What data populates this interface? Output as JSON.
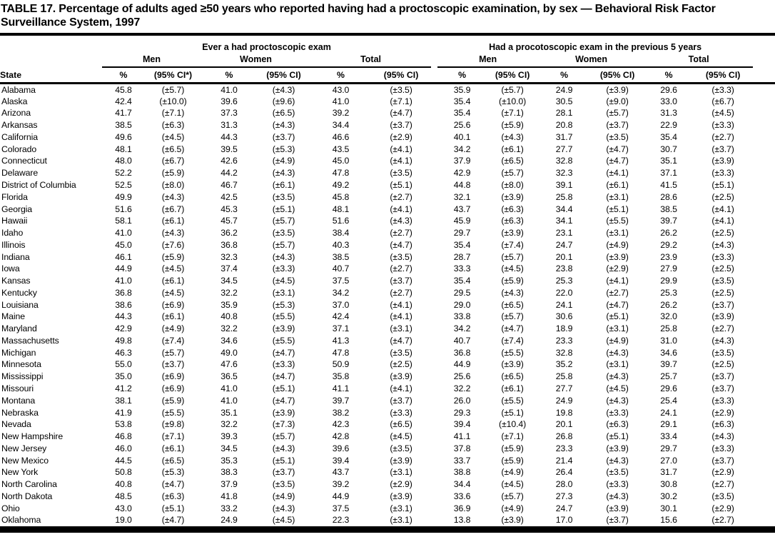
{
  "title": "TABLE 17. Percentage of adults aged ≥50 years who reported having had a proctoscopic examination, by sex — Behavioral Risk Factor Surveillance System, 1997",
  "table": {
    "state_header": "State",
    "group_headers": [
      "Ever a had proctoscopic exam",
      "Had a procotoscopic exam in the previous 5 years"
    ],
    "sex_headers": [
      "Men",
      "Women",
      "Total",
      "Men",
      "Women",
      "Total"
    ],
    "measure_headers": [
      "%",
      "(95% CI*)",
      "%",
      "(95% CI)",
      "%",
      "(95% CI)",
      "%",
      "(95% CI)",
      "%",
      "(95% CI)",
      "%",
      "(95% CI)"
    ],
    "rows": [
      {
        "state": "Alabama",
        "values": [
          "45.8",
          "(±5.7)",
          "41.0",
          "(±4.3)",
          "43.0",
          "(±3.5)",
          "35.9",
          "(±5.7)",
          "24.9",
          "(±3.9)",
          "29.6",
          "(±3.3)"
        ]
      },
      {
        "state": "Alaska",
        "values": [
          "42.4",
          "(±10.0)",
          "39.6",
          "(±9.6)",
          "41.0",
          "(±7.1)",
          "35.4",
          "(±10.0)",
          "30.5",
          "(±9.0)",
          "33.0",
          "(±6.7)"
        ]
      },
      {
        "state": "Arizona",
        "values": [
          "41.7",
          "(±7.1)",
          "37.3",
          "(±6.5)",
          "39.2",
          "(±4.7)",
          "35.4",
          "(±7.1)",
          "28.1",
          "(±5.7)",
          "31.3",
          "(±4.5)"
        ]
      },
      {
        "state": "Arkansas",
        "values": [
          "38.5",
          "(±6.3)",
          "31.3",
          "(±4.3)",
          "34.4",
          "(±3.7)",
          "25.6",
          "(±5.9)",
          "20.8",
          "(±3.7)",
          "22.9",
          "(±3.3)"
        ]
      },
      {
        "state": "California",
        "values": [
          "49.6",
          "(±4.5)",
          "44.3",
          "(±3.7)",
          "46.6",
          "(±2.9)",
          "40.1",
          "(±4.3)",
          "31.7",
          "(±3.5)",
          "35.4",
          "(±2.7)"
        ]
      },
      {
        "state": "Colorado",
        "values": [
          "48.1",
          "(±6.5)",
          "39.5",
          "(±5.3)",
          "43.5",
          "(±4.1)",
          "34.2",
          "(±6.1)",
          "27.7",
          "(±4.7)",
          "30.7",
          "(±3.7)"
        ]
      },
      {
        "state": "Connecticut",
        "values": [
          "48.0",
          "(±6.7)",
          "42.6",
          "(±4.9)",
          "45.0",
          "(±4.1)",
          "37.9",
          "(±6.5)",
          "32.8",
          "(±4.7)",
          "35.1",
          "(±3.9)"
        ]
      },
      {
        "state": "Delaware",
        "values": [
          "52.2",
          "(±5.9)",
          "44.2",
          "(±4.3)",
          "47.8",
          "(±3.5)",
          "42.9",
          "(±5.7)",
          "32.3",
          "(±4.1)",
          "37.1",
          "(±3.3)"
        ]
      },
      {
        "state": "District of Columbia",
        "values": [
          "52.5",
          "(±8.0)",
          "46.7",
          "(±6.1)",
          "49.2",
          "(±5.1)",
          "44.8",
          "(±8.0)",
          "39.1",
          "(±6.1)",
          "41.5",
          "(±5.1)"
        ]
      },
      {
        "state": "Florida",
        "values": [
          "49.9",
          "(±4.3)",
          "42.5",
          "(±3.5)",
          "45.8",
          "(±2.7)",
          "32.1",
          "(±3.9)",
          "25.8",
          "(±3.1)",
          "28.6",
          "(±2.5)"
        ]
      },
      {
        "state": "Georgia",
        "values": [
          "51.6",
          "(±6.7)",
          "45.3",
          "(±5.1)",
          "48.1",
          "(±4.1)",
          "43.7",
          "(±6.3)",
          "34.4",
          "(±5.1)",
          "38.5",
          "(±4.1)"
        ]
      },
      {
        "state": "Hawaii",
        "values": [
          "58.1",
          "(±6.1)",
          "45.7",
          "(±5.7)",
          "51.6",
          "(±4.3)",
          "45.9",
          "(±6.3)",
          "34.1",
          "(±5.5)",
          "39.7",
          "(±4.1)"
        ]
      },
      {
        "state": "Idaho",
        "values": [
          "41.0",
          "(±4.3)",
          "36.2",
          "(±3.5)",
          "38.4",
          "(±2.7)",
          "29.7",
          "(±3.9)",
          "23.1",
          "(±3.1)",
          "26.2",
          "(±2.5)"
        ]
      },
      {
        "state": "Illinois",
        "values": [
          "45.0",
          "(±7.6)",
          "36.8",
          "(±5.7)",
          "40.3",
          "(±4.7)",
          "35.4",
          "(±7.4)",
          "24.7",
          "(±4.9)",
          "29.2",
          "(±4.3)"
        ]
      },
      {
        "state": "Indiana",
        "values": [
          "46.1",
          "(±5.9)",
          "32.3",
          "(±4.3)",
          "38.5",
          "(±3.5)",
          "28.7",
          "(±5.7)",
          "20.1",
          "(±3.9)",
          "23.9",
          "(±3.3)"
        ]
      },
      {
        "state": "Iowa",
        "values": [
          "44.9",
          "(±4.5)",
          "37.4",
          "(±3.3)",
          "40.7",
          "(±2.7)",
          "33.3",
          "(±4.5)",
          "23.8",
          "(±2.9)",
          "27.9",
          "(±2.5)"
        ]
      },
      {
        "state": "Kansas",
        "values": [
          "41.0",
          "(±6.1)",
          "34.5",
          "(±4.5)",
          "37.5",
          "(±3.7)",
          "35.4",
          "(±5.9)",
          "25.3",
          "(±4.1)",
          "29.9",
          "(±3.5)"
        ]
      },
      {
        "state": "Kentucky",
        "values": [
          "36.8",
          "(±4.5)",
          "32.2",
          "(±3.1)",
          "34.2",
          "(±2.7)",
          "29.5",
          "(±4.3)",
          "22.0",
          "(±2.7)",
          "25.3",
          "(±2.5)"
        ]
      },
      {
        "state": "Louisiana",
        "values": [
          "38.6",
          "(±6.9)",
          "35.9",
          "(±5.3)",
          "37.0",
          "(±4.1)",
          "29.0",
          "(±6.5)",
          "24.1",
          "(±4.7)",
          "26.2",
          "(±3.7)"
        ]
      },
      {
        "state": "Maine",
        "values": [
          "44.3",
          "(±6.1)",
          "40.8",
          "(±5.5)",
          "42.4",
          "(±4.1)",
          "33.8",
          "(±5.7)",
          "30.6",
          "(±5.1)",
          "32.0",
          "(±3.9)"
        ]
      },
      {
        "state": "Maryland",
        "values": [
          "42.9",
          "(±4.9)",
          "32.2",
          "(±3.9)",
          "37.1",
          "(±3.1)",
          "34.2",
          "(±4.7)",
          "18.9",
          "(±3.1)",
          "25.8",
          "(±2.7)"
        ]
      },
      {
        "state": "Massachusetts",
        "values": [
          "49.8",
          "(±7.4)",
          "34.6",
          "(±5.5)",
          "41.3",
          "(±4.7)",
          "40.7",
          "(±7.4)",
          "23.3",
          "(±4.9)",
          "31.0",
          "(±4.3)"
        ]
      },
      {
        "state": "Michigan",
        "values": [
          "46.3",
          "(±5.7)",
          "49.0",
          "(±4.7)",
          "47.8",
          "(±3.5)",
          "36.8",
          "(±5.5)",
          "32.8",
          "(±4.3)",
          "34.6",
          "(±3.5)"
        ]
      },
      {
        "state": "Minnesota",
        "values": [
          "55.0",
          "(±3.7)",
          "47.6",
          "(±3.3)",
          "50.9",
          "(±2.5)",
          "44.9",
          "(±3.9)",
          "35.2",
          "(±3.1)",
          "39.7",
          "(±2.5)"
        ]
      },
      {
        "state": "Mississippi",
        "values": [
          "35.0",
          "(±6.9)",
          "36.5",
          "(±4.7)",
          "35.8",
          "(±3.9)",
          "25.6",
          "(±6.5)",
          "25.8",
          "(±4.3)",
          "25.7",
          "(±3.7)"
        ]
      },
      {
        "state": "Missouri",
        "values": [
          "41.2",
          "(±6.9)",
          "41.0",
          "(±5.1)",
          "41.1",
          "(±4.1)",
          "32.2",
          "(±6.1)",
          "27.7",
          "(±4.5)",
          "29.6",
          "(±3.7)"
        ]
      },
      {
        "state": "Montana",
        "values": [
          "38.1",
          "(±5.9)",
          "41.0",
          "(±4.7)",
          "39.7",
          "(±3.7)",
          "26.0",
          "(±5.5)",
          "24.9",
          "(±4.3)",
          "25.4",
          "(±3.3)"
        ]
      },
      {
        "state": "Nebraska",
        "values": [
          "41.9",
          "(±5.5)",
          "35.1",
          "(±3.9)",
          "38.2",
          "(±3.3)",
          "29.3",
          "(±5.1)",
          "19.8",
          "(±3.3)",
          "24.1",
          "(±2.9)"
        ]
      },
      {
        "state": "Nevada",
        "values": [
          "53.8",
          "(±9.8)",
          "32.2",
          "(±7.3)",
          "42.3",
          "(±6.5)",
          "39.4",
          "(±10.4)",
          "20.1",
          "(±6.3)",
          "29.1",
          "(±6.3)"
        ]
      },
      {
        "state": "New Hampshire",
        "values": [
          "46.8",
          "(±7.1)",
          "39.3",
          "(±5.7)",
          "42.8",
          "(±4.5)",
          "41.1",
          "(±7.1)",
          "26.8",
          "(±5.1)",
          "33.4",
          "(±4.3)"
        ]
      },
      {
        "state": "New Jersey",
        "values": [
          "46.0",
          "(±6.1)",
          "34.5",
          "(±4.3)",
          "39.6",
          "(±3.5)",
          "37.8",
          "(±5.9)",
          "23.3",
          "(±3.9)",
          "29.7",
          "(±3.3)"
        ]
      },
      {
        "state": "New Mexico",
        "values": [
          "44.5",
          "(±6.5)",
          "35.3",
          "(±5.1)",
          "39.4",
          "(±3.9)",
          "33.7",
          "(±5.9)",
          "21.4",
          "(±4.3)",
          "27.0",
          "(±3.7)"
        ]
      },
      {
        "state": "New York",
        "values": [
          "50.8",
          "(±5.3)",
          "38.3",
          "(±3.7)",
          "43.7",
          "(±3.1)",
          "38.8",
          "(±4.9)",
          "26.4",
          "(±3.5)",
          "31.7",
          "(±2.9)"
        ]
      },
      {
        "state": "North Carolina",
        "values": [
          "40.8",
          "(±4.7)",
          "37.9",
          "(±3.5)",
          "39.2",
          "(±2.9)",
          "34.4",
          "(±4.5)",
          "28.0",
          "(±3.3)",
          "30.8",
          "(±2.7)"
        ]
      },
      {
        "state": "North Dakota",
        "values": [
          "48.5",
          "(±6.3)",
          "41.8",
          "(±4.9)",
          "44.9",
          "(±3.9)",
          "33.6",
          "(±5.7)",
          "27.3",
          "(±4.3)",
          "30.2",
          "(±3.5)"
        ]
      },
      {
        "state": "Ohio",
        "values": [
          "43.0",
          "(±5.1)",
          "33.2",
          "(±4.3)",
          "37.5",
          "(±3.1)",
          "36.9",
          "(±4.9)",
          "24.7",
          "(±3.9)",
          "30.1",
          "(±2.9)"
        ]
      },
      {
        "state": "Oklahoma",
        "values": [
          "19.0",
          "(±4.7)",
          "24.9",
          "(±4.5)",
          "22.3",
          "(±3.1)",
          "13.8",
          "(±3.9)",
          "17.0",
          "(±3.7)",
          "15.6",
          "(±2.7)"
        ]
      }
    ]
  }
}
